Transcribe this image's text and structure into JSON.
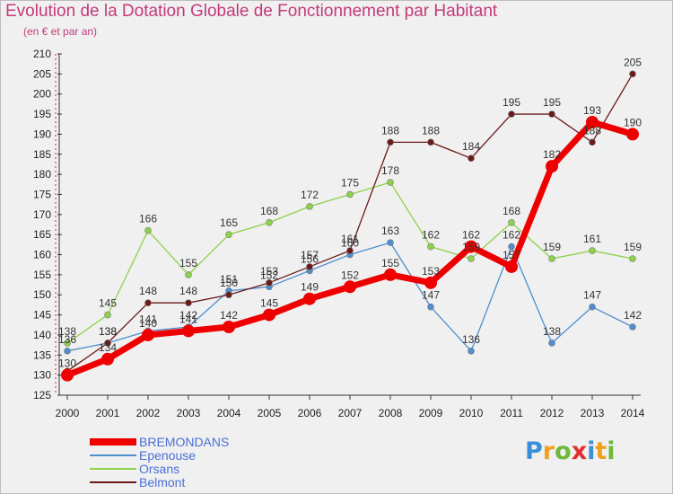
{
  "header": {
    "title": "Evolution de la Dotation Globale de Fonctionnement par Habitant",
    "subtitle": "(en € et par an)"
  },
  "logo": {
    "letters": [
      "P",
      "r",
      "o",
      "x",
      "i",
      "t",
      "i"
    ],
    "colors": [
      "#3a8fd8",
      "#f0a020",
      "#6fb83a",
      "#e03030",
      "#3a8fd8",
      "#f0a020",
      "#6fb83a"
    ]
  },
  "chart_data": {
    "type": "line",
    "title": "Evolution de la Dotation Globale de Fonctionnement par Habitant",
    "subtitle": "(en € et par an)",
    "x": [
      "2000",
      "2001",
      "2002",
      "2003",
      "2004",
      "2005",
      "2006",
      "2007",
      "2008",
      "2009",
      "2010",
      "2011",
      "2012",
      "2013",
      "2014"
    ],
    "ylim": [
      125,
      210
    ],
    "yticks": [
      125,
      130,
      135,
      140,
      145,
      150,
      155,
      160,
      165,
      170,
      175,
      180,
      185,
      190,
      195,
      200,
      205,
      210
    ],
    "grid": false,
    "legend_position": "bottom-left",
    "series": [
      {
        "name": "BREMONDANS",
        "color": "#ee0000",
        "width": 7,
        "marker": 7,
        "labeled": true,
        "values": [
          130,
          134,
          140,
          141,
          142,
          145,
          149,
          152,
          155,
          153,
          162,
          157,
          182,
          193,
          190
        ]
      },
      {
        "name": "Epenouse",
        "color": "#4f8fd0",
        "width": 1.3,
        "marker": 3.5,
        "labeled": false,
        "values": [
          136,
          138,
          141,
          142,
          151,
          152,
          156,
          160,
          163,
          147,
          136,
          162,
          138,
          147,
          142
        ]
      },
      {
        "name": "Orsans",
        "color": "#8ed14a",
        "width": 1.3,
        "marker": 3.5,
        "labeled": true,
        "values": [
          138,
          145,
          166,
          155,
          165,
          168,
          172,
          175,
          178,
          162,
          159,
          168,
          159,
          161,
          159
        ]
      },
      {
        "name": "Belmont",
        "color": "#6b1a1a",
        "width": 1.3,
        "marker": 3.5,
        "labeled": true,
        "values": [
          131,
          138,
          148,
          148,
          150,
          153,
          157,
          161,
          188,
          188,
          184,
          195,
          195,
          188,
          205
        ]
      }
    ],
    "data_labels": [
      {
        "series": "Belmont",
        "values": [
          "",
          "138",
          "148",
          "148",
          "150",
          "153",
          "157",
          "161",
          "188",
          "188",
          "184",
          "195",
          "195",
          "188",
          "205"
        ]
      },
      {
        "series": "Orsans",
        "values": [
          "138",
          "145",
          "166",
          "155",
          "165",
          "168",
          "172",
          "175",
          "178",
          "162",
          "159",
          "168",
          "159",
          "161",
          "159"
        ]
      },
      {
        "series": "Epenouse",
        "values": [
          "136",
          "138",
          "141",
          "142",
          "151",
          "152",
          "156",
          "160",
          "163",
          "147",
          "136",
          "162",
          "138",
          "147",
          "142"
        ]
      },
      {
        "series": "BREMONDANS",
        "values": [
          "130",
          "134",
          "140",
          "141",
          "142",
          "145",
          "149",
          "152",
          "155",
          "153",
          "162",
          "157",
          "182",
          "193",
          "190"
        ]
      }
    ]
  },
  "legend": {
    "items": [
      {
        "label": "BREMONDANS",
        "color": "#ee0000",
        "thickness": 8
      },
      {
        "label": "Epenouse",
        "color": "#4f8fd0",
        "thickness": 2
      },
      {
        "label": "Orsans",
        "color": "#8ed14a",
        "thickness": 2
      },
      {
        "label": "Belmont",
        "color": "#6b1a1a",
        "thickness": 2
      }
    ]
  }
}
